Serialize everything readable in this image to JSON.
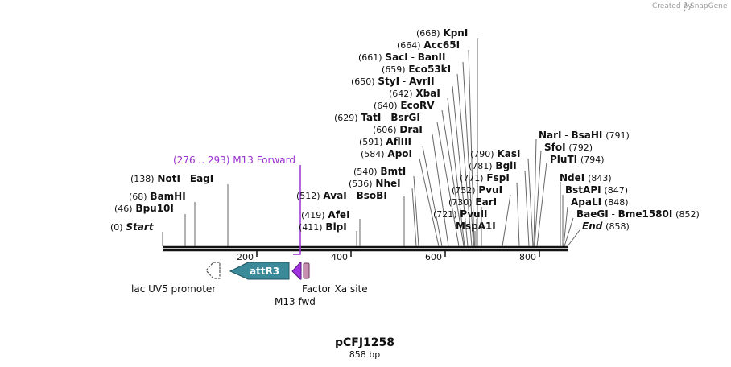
{
  "credit": {
    "created_by": "Created by",
    "brand": "SnapGene"
  },
  "plasmid": {
    "name": "pCFJ1258",
    "length_label": "858 bp",
    "length": 858
  },
  "ruler": {
    "ticks": [
      "200",
      "400",
      "600",
      "800"
    ]
  },
  "primer": {
    "range": "(276 .. 293)",
    "name": "M13 Forward"
  },
  "features": {
    "lac_promoter": "lac UV5 promoter",
    "attR3": "attR3",
    "m13_fwd": "M13 fwd",
    "factor_xa": "Factor Xa site"
  },
  "sites_left": [
    {
      "pos": "(0)",
      "name": "Start"
    },
    {
      "pos": "(46)",
      "name": "Bpu10I"
    },
    {
      "pos": "(68)",
      "name": "BamHI"
    },
    {
      "pos": "(138)",
      "name": "NotI",
      "extra": "EagI"
    }
  ],
  "sites_mid": [
    {
      "pos": "(411)",
      "name": "BlpI"
    },
    {
      "pos": "(419)",
      "name": "AfeI"
    },
    {
      "pos": "(512)",
      "name": "AvaI",
      "extra": "BsoBI"
    }
  ],
  "sites_top": [
    {
      "pos": "(536)",
      "name": "NheI"
    },
    {
      "pos": "(540)",
      "name": "BmtI"
    },
    {
      "pos": "(584)",
      "name": "ApoI"
    },
    {
      "pos": "(591)",
      "name": "AflIII"
    },
    {
      "pos": "(606)",
      "name": "DraI"
    },
    {
      "pos": "(629)",
      "name": "TatI",
      "extra": "BsrGI"
    },
    {
      "pos": "(640)",
      "name": "EcoRV"
    },
    {
      "pos": "(642)",
      "name": "XbaI"
    },
    {
      "pos": "(650)",
      "name": "StyI",
      "extra": "AvrII"
    },
    {
      "pos": "(659)",
      "name": "Eco53kI"
    },
    {
      "pos": "(661)",
      "name": "SacI",
      "extra": "BanII"
    },
    {
      "pos": "(664)",
      "name": "Acc65I"
    },
    {
      "pos": "(668)",
      "name": "KpnI"
    }
  ],
  "sites_center": [
    {
      "name": "MspA1I"
    },
    {
      "pos": "(721)",
      "name": "PvuII"
    },
    {
      "pos": "(730)",
      "name": "EarI"
    },
    {
      "pos": "(752)",
      "name": "PvuI"
    },
    {
      "pos": "(771)",
      "name": "FspI"
    },
    {
      "pos": "(781)",
      "name": "BglI"
    },
    {
      "pos": "(790)",
      "name": "KasI"
    }
  ],
  "sites_right": [
    {
      "name": "NarI",
      "extra": "BsaHI",
      "pos": "(791)"
    },
    {
      "name": "SfoI",
      "pos": "(792)"
    },
    {
      "name": "PluTI",
      "pos": "(794)"
    },
    {
      "name": "NdeI",
      "pos": "(843)"
    },
    {
      "name": "BstAPI",
      "pos": "(847)"
    },
    {
      "name": "ApaLI",
      "pos": "(848)"
    },
    {
      "name": "BaeGI",
      "extra": "Bme1580I",
      "pos": "(852)"
    },
    {
      "name": "End",
      "pos": "(858)"
    }
  ]
}
